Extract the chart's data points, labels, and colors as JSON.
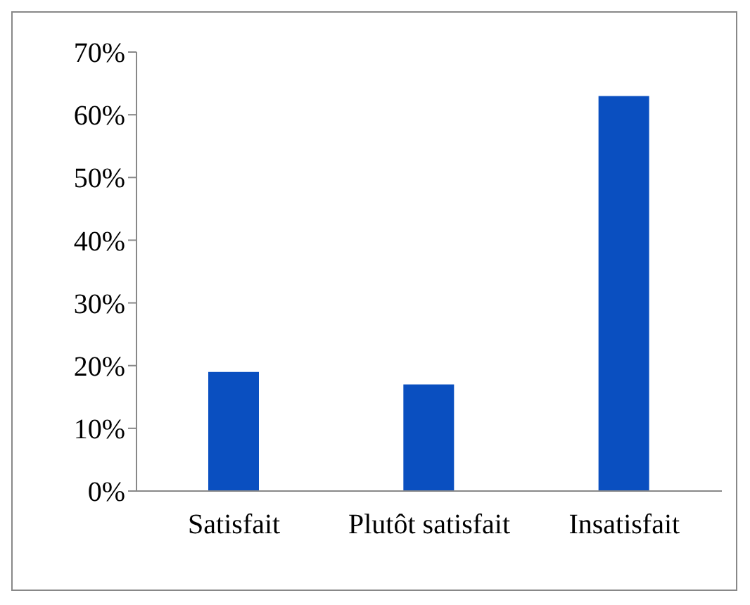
{
  "chart_data": {
    "type": "bar",
    "categories": [
      "Satisfait",
      "Plutôt satisfait",
      "Insatisfait"
    ],
    "values": [
      19,
      17,
      63
    ],
    "color": "#0a4fc0",
    "ylim": [
      0,
      70
    ],
    "yticks": [
      {
        "value": 0,
        "label": "0%"
      },
      {
        "value": 10,
        "label": "10%"
      },
      {
        "value": 20,
        "label": "20%"
      },
      {
        "value": 30,
        "label": "30%"
      },
      {
        "value": 40,
        "label": "40%"
      },
      {
        "value": 50,
        "label": "50%"
      },
      {
        "value": 60,
        "label": "60%"
      },
      {
        "value": 70,
        "label": "70%"
      }
    ],
    "grid": false
  }
}
